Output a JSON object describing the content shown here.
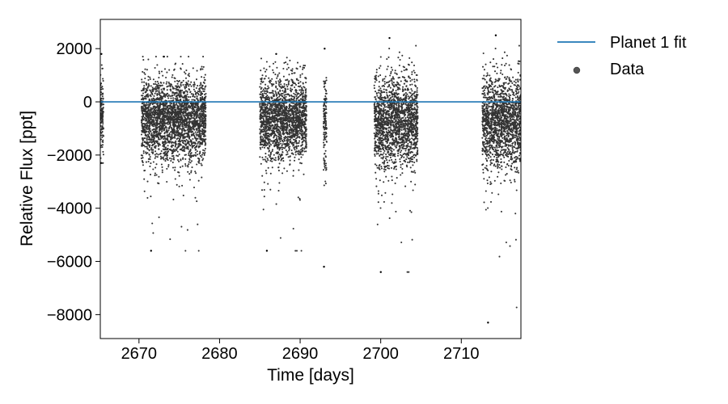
{
  "chart_data": {
    "type": "scatter",
    "title": "",
    "xlabel": "Time [days]",
    "ylabel": "Relative Flux [ppt]",
    "xlim": [
      2665.2,
      2717.4
    ],
    "ylim": [
      -8900,
      3100
    ],
    "xticks": [
      2670,
      2680,
      2690,
      2700,
      2710
    ],
    "yticks": [
      2000,
      0,
      -2000,
      -4000,
      -6000,
      -8000
    ],
    "xtick_labels": [
      "2670",
      "2680",
      "2690",
      "2700",
      "2710"
    ],
    "ytick_labels": [
      "2000",
      "0",
      "−2000",
      "−4000",
      "−6000",
      "−8000"
    ],
    "grid": false,
    "legend_position": "outside-top-right",
    "series": [
      {
        "name": "Planet 1 fit",
        "kind": "line",
        "color": "#1f77b4",
        "x": [
          2665.2,
          2717.4
        ],
        "y": [
          0,
          0
        ]
      },
      {
        "name": "Data",
        "kind": "scatter",
        "color": "#000000",
        "segments": [
          {
            "x_start": 2665.2,
            "x_end": 2665.6,
            "y_center": -400,
            "y_spread": 700,
            "y_min": -2300,
            "y_max": 1800
          },
          {
            "x_start": 2670.3,
            "x_end": 2678.3,
            "y_center": -650,
            "y_spread": 750,
            "y_min": -5600,
            "y_max": 1700
          },
          {
            "x_start": 2685.0,
            "x_end": 2690.8,
            "y_center": -600,
            "y_spread": 750,
            "y_min": -5600,
            "y_max": 1800
          },
          {
            "x_start": 2692.9,
            "x_end": 2693.3,
            "y_center": -600,
            "y_spread": 900,
            "y_min": -6200,
            "y_max": 2000
          },
          {
            "x_start": 2699.2,
            "x_end": 2704.6,
            "y_center": -700,
            "y_spread": 850,
            "y_min": -6400,
            "y_max": 2400
          },
          {
            "x_start": 2712.6,
            "x_end": 2717.4,
            "y_center": -700,
            "y_spread": 850,
            "y_min": -8300,
            "y_max": 2500
          }
        ]
      }
    ],
    "legend": [
      {
        "label": "Planet 1 fit",
        "marker": "line",
        "color": "#1f77b4"
      },
      {
        "label": "Data",
        "marker": "dot",
        "color": "#555555"
      }
    ]
  }
}
